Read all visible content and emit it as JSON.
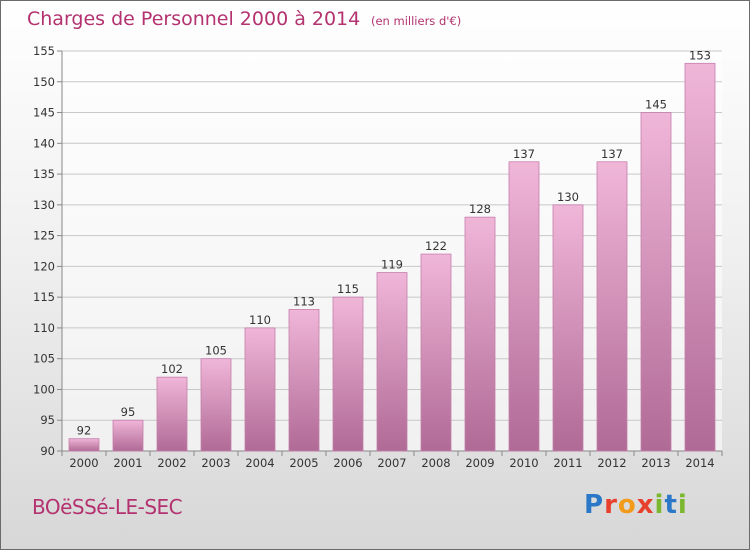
{
  "title": "Charges de Personnel 2000 à 2014",
  "subtitle": "(en milliers d'€)",
  "commune": "BOëSSé-LE-SEC",
  "logo": {
    "letters": [
      {
        "char": "P",
        "color": "#2b78c8"
      },
      {
        "char": "r",
        "color": "#e7412e"
      },
      {
        "char": "o",
        "color": "#f29a19"
      },
      {
        "char": "x",
        "color": "#e7412e"
      },
      {
        "char": "i",
        "color": "#7cb82f"
      },
      {
        "char": "t",
        "color": "#2b78c8"
      },
      {
        "char": "i",
        "color": "#7cb82f"
      }
    ]
  },
  "colors": {
    "text_accent": "#b3326f",
    "bar_top": "#f0b6d8",
    "bar_bottom": "#b06a96",
    "bar_edge": "#c57fac"
  },
  "chart_data": {
    "type": "bar",
    "categories": [
      "2000",
      "2001",
      "2002",
      "2003",
      "2004",
      "2005",
      "2006",
      "2007",
      "2008",
      "2009",
      "2010",
      "2011",
      "2012",
      "2013",
      "2014"
    ],
    "values": [
      92,
      95,
      102,
      105,
      110,
      113,
      115,
      119,
      122,
      128,
      137,
      130,
      137,
      145,
      153
    ],
    "ylim": [
      90,
      155
    ],
    "yticks": [
      90,
      95,
      100,
      105,
      110,
      115,
      120,
      125,
      130,
      135,
      140,
      145,
      150,
      155
    ],
    "grid": true,
    "xlabel": "",
    "ylabel": ""
  }
}
